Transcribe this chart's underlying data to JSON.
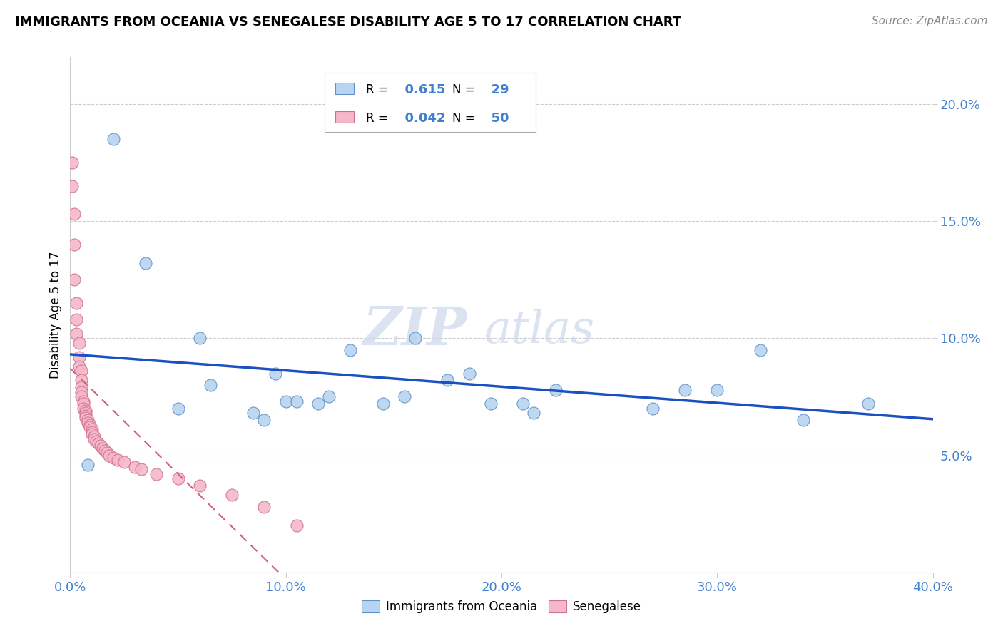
{
  "title": "IMMIGRANTS FROM OCEANIA VS SENEGALESE DISABILITY AGE 5 TO 17 CORRELATION CHART",
  "source": "Source: ZipAtlas.com",
  "ylabel": "Disability Age 5 to 17",
  "xlim": [
    0.0,
    0.4
  ],
  "ylim": [
    0.0,
    0.22
  ],
  "xticks": [
    0.0,
    0.1,
    0.2,
    0.3,
    0.4
  ],
  "xtick_labels": [
    "0.0%",
    "10.0%",
    "20.0%",
    "30.0%",
    "40.0%"
  ],
  "yticks": [
    0.05,
    0.1,
    0.15,
    0.2
  ],
  "ytick_labels": [
    "5.0%",
    "10.0%",
    "15.0%",
    "20.0%"
  ],
  "blue_R": 0.615,
  "blue_N": 29,
  "pink_R": 0.042,
  "pink_N": 50,
  "blue_scatter_color": "#b8d4f0",
  "blue_edge_color": "#6090c8",
  "pink_scatter_color": "#f5b8c8",
  "pink_edge_color": "#d07090",
  "blue_line_color": "#1a50c0",
  "pink_line_color": "#d06080",
  "tick_label_color": "#4080d0",
  "legend_label_blue": "Immigrants from Oceania",
  "legend_label_pink": "Senegalese",
  "watermark_zip": "ZIP",
  "watermark_atlas": "atlas",
  "blue_x": [
    0.008,
    0.02,
    0.035,
    0.05,
    0.06,
    0.065,
    0.085,
    0.09,
    0.095,
    0.1,
    0.105,
    0.115,
    0.12,
    0.13,
    0.145,
    0.155,
    0.16,
    0.175,
    0.185,
    0.195,
    0.21,
    0.215,
    0.225,
    0.27,
    0.285,
    0.3,
    0.32,
    0.34,
    0.37
  ],
  "blue_y": [
    0.046,
    0.185,
    0.132,
    0.07,
    0.1,
    0.08,
    0.068,
    0.065,
    0.085,
    0.073,
    0.073,
    0.072,
    0.075,
    0.095,
    0.072,
    0.075,
    0.1,
    0.082,
    0.085,
    0.072,
    0.072,
    0.068,
    0.078,
    0.07,
    0.078,
    0.078,
    0.095,
    0.065,
    0.072
  ],
  "pink_x": [
    0.001,
    0.001,
    0.002,
    0.002,
    0.002,
    0.003,
    0.003,
    0.003,
    0.004,
    0.004,
    0.004,
    0.005,
    0.005,
    0.005,
    0.005,
    0.005,
    0.006,
    0.006,
    0.006,
    0.007,
    0.007,
    0.007,
    0.007,
    0.008,
    0.008,
    0.009,
    0.009,
    0.01,
    0.01,
    0.01,
    0.011,
    0.011,
    0.012,
    0.013,
    0.014,
    0.015,
    0.016,
    0.017,
    0.018,
    0.02,
    0.022,
    0.025,
    0.03,
    0.033,
    0.04,
    0.05,
    0.06,
    0.075,
    0.09,
    0.105
  ],
  "pink_y": [
    0.175,
    0.165,
    0.153,
    0.14,
    0.125,
    0.115,
    0.108,
    0.102,
    0.098,
    0.092,
    0.088,
    0.086,
    0.082,
    0.079,
    0.077,
    0.075,
    0.073,
    0.072,
    0.07,
    0.069,
    0.068,
    0.067,
    0.066,
    0.065,
    0.064,
    0.063,
    0.062,
    0.061,
    0.06,
    0.059,
    0.058,
    0.057,
    0.056,
    0.055,
    0.054,
    0.053,
    0.052,
    0.051,
    0.05,
    0.049,
    0.048,
    0.047,
    0.045,
    0.044,
    0.042,
    0.04,
    0.037,
    0.033,
    0.028,
    0.02
  ]
}
